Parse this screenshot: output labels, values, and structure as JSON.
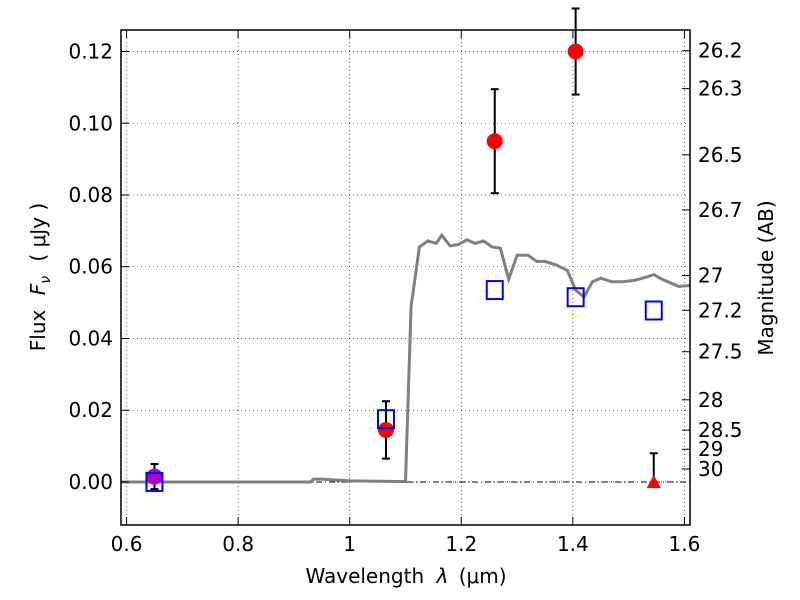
{
  "chart_data": {
    "type": "scatter",
    "xlabel_text": "Wavelength",
    "xlabel_symbol": "λ",
    "xlabel_unit": "(μm)",
    "ylabel_text": "Flux",
    "ylabel_symbol": "F",
    "ylabel_subscript": "ν",
    "ylabel_unit": "( μJy )",
    "y2label": "Magnitude (AB)",
    "xlim": [
      0.59,
      1.61
    ],
    "ylim": [
      -0.012,
      0.126
    ],
    "grid": true,
    "x_ticks": [
      {
        "value": 0.6,
        "label": "0.6"
      },
      {
        "value": 0.8,
        "label": "0.8"
      },
      {
        "value": 1.0,
        "label": "1"
      },
      {
        "value": 1.2,
        "label": "1.2"
      },
      {
        "value": 1.4,
        "label": "1.4"
      },
      {
        "value": 1.6,
        "label": "1.6"
      }
    ],
    "y_ticks": [
      {
        "value": 0.0,
        "label": "0.00"
      },
      {
        "value": 0.02,
        "label": "0.02"
      },
      {
        "value": 0.04,
        "label": "0.04"
      },
      {
        "value": 0.06,
        "label": "0.06"
      },
      {
        "value": 0.08,
        "label": "0.08"
      },
      {
        "value": 0.1,
        "label": "0.10"
      },
      {
        "value": 0.12,
        "label": "0.12"
      }
    ],
    "mag_ticks": [
      {
        "value": 26.2,
        "label": "26.2"
      },
      {
        "value": 26.3,
        "label": "26.3"
      },
      {
        "value": 26.5,
        "label": "26.5"
      },
      {
        "value": 26.7,
        "label": "26.7"
      },
      {
        "value": 27.0,
        "label": "27"
      },
      {
        "value": 27.2,
        "label": "27.2"
      },
      {
        "value": 27.5,
        "label": "27.5"
      },
      {
        "value": 28.0,
        "label": "28"
      },
      {
        "value": 28.5,
        "label": "28.5"
      },
      {
        "value": 29.0,
        "label": "29"
      },
      {
        "value": 30.0,
        "label": "30"
      }
    ],
    "model_line": {
      "color": "#808080",
      "x": [
        0.59,
        0.93,
        0.935,
        0.95,
        1.0,
        1.05,
        1.095,
        1.1,
        1.11,
        1.125,
        1.14,
        1.155,
        1.165,
        1.18,
        1.195,
        1.21,
        1.225,
        1.24,
        1.255,
        1.27,
        1.285,
        1.3,
        1.32,
        1.335,
        1.35,
        1.37,
        1.39,
        1.405,
        1.42,
        1.435,
        1.45,
        1.47,
        1.49,
        1.51,
        1.53,
        1.545,
        1.56,
        1.575,
        1.59,
        1.61
      ],
      "y": [
        0.0,
        0.0,
        0.0008,
        0.0008,
        0.0003,
        0.0002,
        0.0001,
        0.0001,
        0.049,
        0.0655,
        0.0672,
        0.0665,
        0.0688,
        0.0658,
        0.0662,
        0.0675,
        0.0665,
        0.0672,
        0.0655,
        0.0652,
        0.0565,
        0.0632,
        0.0632,
        0.0615,
        0.0615,
        0.0605,
        0.059,
        0.0535,
        0.0515,
        0.0558,
        0.0568,
        0.0558,
        0.0558,
        0.0562,
        0.057,
        0.0578,
        0.0565,
        0.0555,
        0.0545,
        0.0548
      ]
    },
    "model_photometry": {
      "color": "#0000ff",
      "x": [
        0.65,
        1.065,
        1.26,
        1.405,
        1.545
      ],
      "y": [
        0.0,
        0.0175,
        0.0535,
        0.0515,
        0.0478
      ]
    },
    "observed": {
      "color": "#ff0000",
      "x": [
        0.65,
        1.065,
        1.26,
        1.405
      ],
      "y": [
        0.0015,
        0.0145,
        0.095,
        0.12
      ],
      "err": [
        0.0035,
        0.008,
        0.0145,
        0.012
      ]
    },
    "purple_point": {
      "color": "#b000c0",
      "x": 0.65,
      "y": 0.0015
    },
    "upper_limit": {
      "color": "#ff0000",
      "x": 1.545,
      "y": 0.0,
      "err_top": 0.008
    }
  }
}
